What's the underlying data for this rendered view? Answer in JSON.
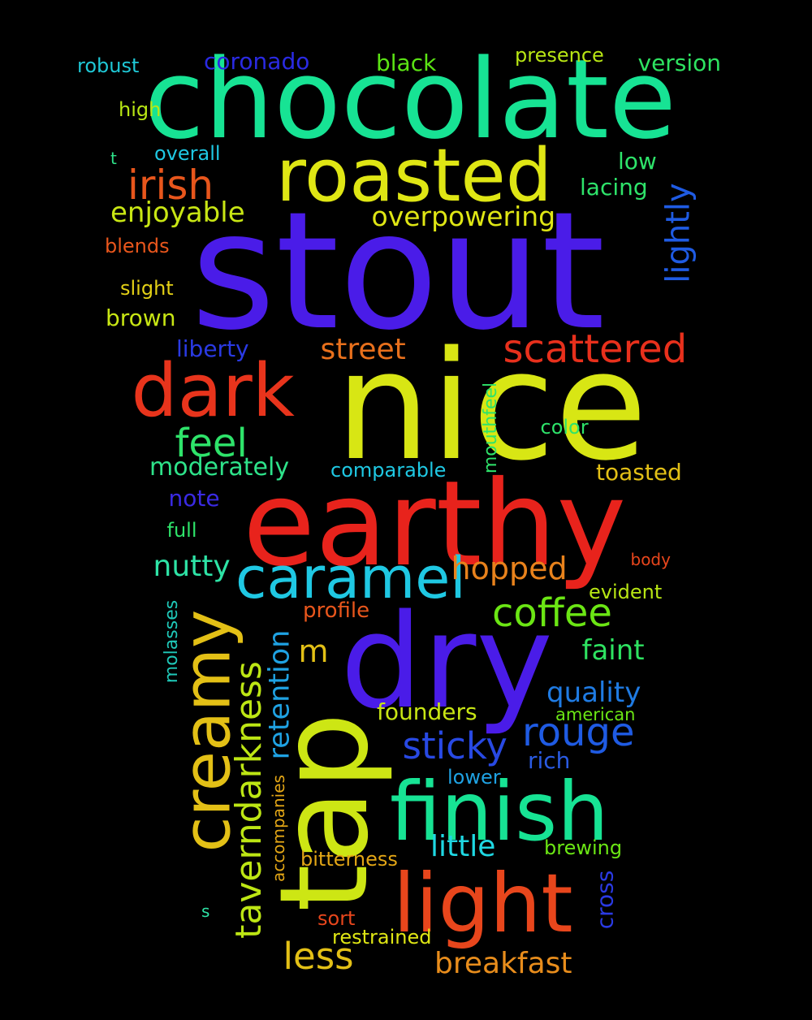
{
  "background_color": "#000000",
  "words": [
    {
      "text": "stout",
      "color": "#4a1ce8"
    },
    {
      "text": "nice",
      "color": "#d8e614"
    },
    {
      "text": "chocolate",
      "color": "#17e394"
    },
    {
      "text": "earthy",
      "color": "#e8231c"
    },
    {
      "text": "dry",
      "color": "#4a1ce8"
    },
    {
      "text": "tap",
      "color": "#cde614"
    },
    {
      "text": "roasted",
      "color": "#dfe614"
    },
    {
      "text": "dark",
      "color": "#e8341c"
    },
    {
      "text": "finish",
      "color": "#17e394"
    },
    {
      "text": "light",
      "color": "#e8461c"
    },
    {
      "text": "creamy",
      "color": "#e3c016"
    },
    {
      "text": "caramel",
      "color": "#1fc8e3"
    },
    {
      "text": "scattered",
      "color": "#e8301c"
    },
    {
      "text": "taverndarkness",
      "color": "#bde614"
    },
    {
      "text": "lightly",
      "color": "#1f5be3"
    },
    {
      "text": "irish",
      "color": "#e8561c"
    },
    {
      "text": "coffee",
      "color": "#6be614"
    },
    {
      "text": "rouge",
      "color": "#1f5be3"
    },
    {
      "text": "sticky",
      "color": "#2849e3"
    },
    {
      "text": "feel",
      "color": "#2ee36a"
    },
    {
      "text": "less",
      "color": "#e3c016"
    },
    {
      "text": "hopped",
      "color": "#e8821c"
    },
    {
      "text": "retention",
      "color": "#1fa2e3"
    },
    {
      "text": "overpowering",
      "color": "#dfe614"
    },
    {
      "text": "enjoyable",
      "color": "#c8e614"
    },
    {
      "text": "breakfast",
      "color": "#e88d1c"
    },
    {
      "text": "street",
      "color": "#e8701c"
    },
    {
      "text": "little",
      "color": "#1fd8e3"
    },
    {
      "text": "nutty",
      "color": "#2ee3a6"
    },
    {
      "text": "quality",
      "color": "#1f7be3"
    },
    {
      "text": "faint",
      "color": "#2ee361"
    },
    {
      "text": "moderately",
      "color": "#2ee38a"
    },
    {
      "text": "m",
      "color": "#e3c016"
    },
    {
      "text": "founders",
      "color": "#c8e614"
    },
    {
      "text": "black",
      "color": "#5be314"
    },
    {
      "text": "coronado",
      "color": "#2a2ae3"
    },
    {
      "text": "version",
      "color": "#2ee361"
    },
    {
      "text": "lacing",
      "color": "#2ee36a"
    },
    {
      "text": "toasted",
      "color": "#e3c016"
    },
    {
      "text": "liberty",
      "color": "#2a3ae3"
    },
    {
      "text": "robust",
      "color": "#1fc8d6"
    },
    {
      "text": "presence",
      "color": "#b8e614"
    },
    {
      "text": "high",
      "color": "#b8e614"
    },
    {
      "text": "low",
      "color": "#2ee36a"
    },
    {
      "text": "overall",
      "color": "#1fc8e3"
    },
    {
      "text": "blends",
      "color": "#e8561c"
    },
    {
      "text": "slight",
      "color": "#e3d016"
    },
    {
      "text": "brown",
      "color": "#c8e614"
    },
    {
      "text": "note",
      "color": "#3a2ae3"
    },
    {
      "text": "full",
      "color": "#2ee36a"
    },
    {
      "text": "comparable",
      "color": "#1fc8e3"
    },
    {
      "text": "color",
      "color": "#2ee36a"
    },
    {
      "text": "mouthfeel",
      "color": "#2ee36a"
    },
    {
      "text": "profile",
      "color": "#e8561c"
    },
    {
      "text": "evident",
      "color": "#b8e614"
    },
    {
      "text": "body",
      "color": "#e8461c"
    },
    {
      "text": "molasses",
      "color": "#1fc8b8"
    },
    {
      "text": "american",
      "color": "#6be614"
    },
    {
      "text": "rich",
      "color": "#2a5be3"
    },
    {
      "text": "lower",
      "color": "#1fa2e3"
    },
    {
      "text": "brewing",
      "color": "#6be614"
    },
    {
      "text": "bitterness",
      "color": "#e3a616"
    },
    {
      "text": "accompanies",
      "color": "#e3a616"
    },
    {
      "text": "cross",
      "color": "#2a3ae3"
    },
    {
      "text": "sort",
      "color": "#e8461c"
    },
    {
      "text": "restrained",
      "color": "#dfe614"
    },
    {
      "text": "t",
      "color": "#2ee38a"
    },
    {
      "text": "s",
      "color": "#2ee3a6"
    }
  ]
}
